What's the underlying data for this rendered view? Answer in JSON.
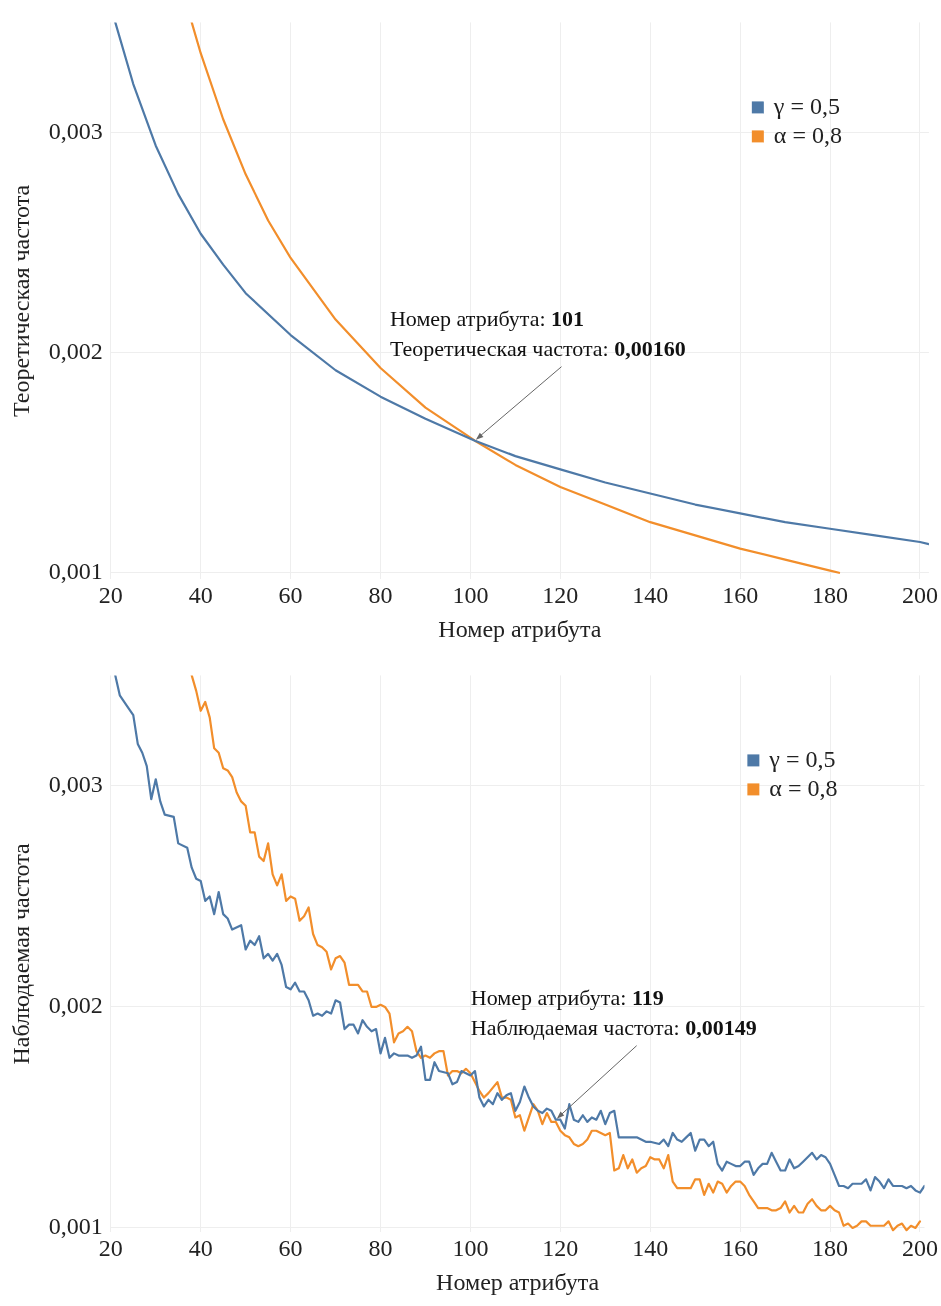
{
  "chart_data": [
    {
      "type": "line",
      "xlabel": "Номер атрибута",
      "ylabel": "Теоретическая частота",
      "xlim": [
        20,
        202
      ],
      "ylim": [
        0.00097,
        0.0035
      ],
      "xticks": [
        20,
        40,
        60,
        80,
        100,
        120,
        140,
        160,
        180,
        200
      ],
      "yticks": [
        {
          "value": 0.001,
          "label": "0,001"
        },
        {
          "value": 0.002,
          "label": "0,002"
        },
        {
          "value": 0.003,
          "label": "0,003"
        }
      ],
      "grid": true,
      "legend": "top right",
      "series": [
        {
          "name": "γ = 0,5",
          "color": "#4e79a7",
          "x": [
            21,
            25,
            30,
            35,
            40,
            45,
            50,
            60,
            70,
            80,
            90,
            101,
            110,
            120,
            130,
            140,
            150,
            160,
            170,
            180,
            190,
            200,
            202
          ],
          "values": [
            0.0035,
            0.00322,
            0.00294,
            0.00272,
            0.00254,
            0.0024,
            0.00227,
            0.00208,
            0.00192,
            0.0018,
            0.0017,
            0.0016,
            0.00153,
            0.00147,
            0.00141,
            0.00136,
            0.00131,
            0.00127,
            0.00123,
            0.0012,
            0.00117,
            0.00114,
            0.00113
          ]
        },
        {
          "name": "α = 0,8",
          "color": "#f28e2b",
          "x": [
            38,
            40,
            45,
            50,
            55,
            60,
            70,
            80,
            90,
            101,
            110,
            120,
            130,
            140,
            150,
            160,
            170,
            180,
            182
          ],
          "values": [
            0.0035,
            0.00336,
            0.00306,
            0.00281,
            0.0026,
            0.00243,
            0.00215,
            0.00193,
            0.00175,
            0.0016,
            0.00149,
            0.00139,
            0.00131,
            0.00123,
            0.00117,
            0.00111,
            0.00106,
            0.00101,
            0.001
          ]
        }
      ],
      "annotations": [
        {
          "text": "Номер атрибута: 101\nТеоретическая частота: 0,00160",
          "x": 101,
          "y": 0.0016
        }
      ]
    },
    {
      "type": "line",
      "xlabel": "Номер атрибута",
      "ylabel": "Наблюдаемая частота",
      "xlim": [
        20,
        201
      ],
      "ylim": [
        0.00098,
        0.0035
      ],
      "xticks": [
        20,
        40,
        60,
        80,
        100,
        120,
        140,
        160,
        180,
        200
      ],
      "yticks": [
        {
          "value": 0.001,
          "label": "0,001"
        },
        {
          "value": 0.002,
          "label": "0,002"
        },
        {
          "value": 0.003,
          "label": "0,003"
        }
      ],
      "grid": true,
      "legend": "top right",
      "series": [
        {
          "name": "γ = 0,5",
          "color": "#4e79a7",
          "x": [
            21,
            22,
            24,
            25,
            26,
            27,
            28,
            29,
            30,
            31,
            32,
            34,
            35,
            37,
            38,
            39,
            40,
            41,
            42,
            43,
            44,
            45,
            46,
            47,
            49,
            50,
            51,
            52,
            53,
            54,
            55,
            56,
            57,
            58,
            59,
            60,
            61,
            62,
            63,
            64,
            65,
            66,
            67,
            68,
            69,
            70,
            71,
            72,
            73,
            74,
            75,
            76,
            77,
            78,
            79,
            80,
            81,
            82,
            83,
            84,
            86,
            87,
            88,
            89,
            90,
            91,
            92,
            93,
            95,
            96,
            97,
            98,
            99,
            100,
            101,
            102,
            103,
            104,
            105,
            106,
            107,
            108,
            109,
            110,
            111,
            112,
            113,
            114,
            115,
            116,
            117,
            118,
            119,
            120,
            121,
            122,
            123,
            124,
            125,
            126,
            127,
            128,
            129,
            130,
            131,
            132,
            133,
            134,
            135,
            136,
            137,
            139,
            140,
            142,
            143,
            144,
            145,
            146,
            147,
            148,
            149,
            150,
            151,
            152,
            153,
            154,
            155,
            156,
            157,
            158,
            159,
            160,
            161,
            162,
            163,
            164,
            165,
            166,
            167,
            168,
            169,
            170,
            171,
            172,
            173,
            174,
            175,
            176,
            177,
            178,
            179,
            180,
            181,
            182,
            183,
            184,
            185,
            186,
            187,
            188,
            189,
            190,
            191,
            192,
            193,
            194,
            195,
            196,
            197,
            198,
            199,
            200,
            201
          ],
          "values": [
            0.0035,
            0.00341,
            0.00335,
            0.00332,
            0.00319,
            0.00315,
            0.00309,
            0.00294,
            0.00303,
            0.00293,
            0.00287,
            0.00286,
            0.00274,
            0.00272,
            0.00263,
            0.00258,
            0.00257,
            0.00248,
            0.0025,
            0.00242,
            0.00252,
            0.00242,
            0.0024,
            0.00235,
            0.00237,
            0.00226,
            0.0023,
            0.00228,
            0.00232,
            0.00222,
            0.00224,
            0.00221,
            0.00224,
            0.00219,
            0.00209,
            0.00208,
            0.00211,
            0.00207,
            0.00207,
            0.00203,
            0.00196,
            0.00197,
            0.00196,
            0.00198,
            0.00197,
            0.00203,
            0.00202,
            0.0019,
            0.00192,
            0.00192,
            0.00188,
            0.00194,
            0.00191,
            0.00189,
            0.0019,
            0.00179,
            0.00186,
            0.00177,
            0.00179,
            0.00178,
            0.00178,
            0.00177,
            0.00178,
            0.00182,
            0.00167,
            0.00167,
            0.00175,
            0.00171,
            0.0017,
            0.00165,
            0.00166,
            0.00171,
            0.0017,
            0.00169,
            0.00171,
            0.00159,
            0.00155,
            0.00158,
            0.00156,
            0.00161,
            0.00158,
            0.0016,
            0.00161,
            0.00153,
            0.00157,
            0.00164,
            0.00159,
            0.00155,
            0.00153,
            0.00152,
            0.00154,
            0.00153,
            0.00149,
            0.00149,
            0.00145,
            0.00156,
            0.00149,
            0.00148,
            0.00151,
            0.00148,
            0.0015,
            0.00149,
            0.00153,
            0.00147,
            0.00152,
            0.00153,
            0.00141,
            0.00141,
            0.00141,
            0.00141,
            0.00141,
            0.00139,
            0.00139,
            0.00138,
            0.0014,
            0.00137,
            0.00143,
            0.0014,
            0.00139,
            0.00141,
            0.00143,
            0.00135,
            0.0014,
            0.0014,
            0.00137,
            0.00139,
            0.00129,
            0.00126,
            0.0013,
            0.00129,
            0.00128,
            0.00128,
            0.0013,
            0.0013,
            0.00124,
            0.00127,
            0.00129,
            0.00129,
            0.00134,
            0.0013,
            0.00126,
            0.00126,
            0.00131,
            0.00127,
            0.00128,
            0.0013,
            0.00132,
            0.00134,
            0.00131,
            0.00133,
            0.00132,
            0.00129,
            0.00124,
            0.00119,
            0.00119,
            0.00118,
            0.0012,
            0.0012,
            0.0012,
            0.00122,
            0.00117,
            0.00123,
            0.00121,
            0.00118,
            0.00122,
            0.00119,
            0.00119,
            0.00119,
            0.00118,
            0.00119,
            0.00117,
            0.00116,
            0.00119
          ]
        },
        {
          "name": "α = 0,8",
          "color": "#f28e2b",
          "x": [
            38,
            39,
            40,
            41,
            42,
            43,
            44,
            45,
            46,
            47,
            48,
            49,
            50,
            51,
            52,
            53,
            54,
            55,
            56,
            57,
            58,
            59,
            60,
            61,
            62,
            63,
            64,
            65,
            66,
            67,
            68,
            69,
            70,
            71,
            72,
            73,
            74,
            75,
            76,
            77,
            78,
            79,
            80,
            81,
            82,
            83,
            84,
            85,
            86,
            87,
            88,
            89,
            90,
            91,
            92,
            93,
            94,
            95,
            96,
            97,
            98,
            99,
            100,
            101,
            102,
            103,
            104,
            106,
            107,
            108,
            109,
            110,
            111,
            112,
            113,
            114,
            115,
            116,
            117,
            118,
            119,
            120,
            121,
            122,
            123,
            124,
            125,
            126,
            127,
            128,
            129,
            130,
            131,
            132,
            133,
            134,
            135,
            136,
            137,
            138,
            139,
            140,
            141,
            142,
            143,
            144,
            145,
            146,
            147,
            148,
            149,
            150,
            151,
            152,
            153,
            154,
            155,
            156,
            157,
            158,
            159,
            160,
            161,
            162,
            163,
            164,
            165,
            166,
            167,
            168,
            169,
            170,
            171,
            172,
            173,
            174,
            175,
            176,
            177,
            178,
            179,
            180,
            181,
            182,
            183,
            184,
            185,
            186,
            187,
            188,
            189,
            190,
            191,
            192,
            193,
            194,
            195,
            196,
            197,
            198,
            199,
            200
          ],
          "values": [
            0.0035,
            0.00343,
            0.00334,
            0.00338,
            0.00331,
            0.00317,
            0.00315,
            0.00308,
            0.00307,
            0.00304,
            0.00297,
            0.00293,
            0.00291,
            0.00279,
            0.00279,
            0.00268,
            0.00266,
            0.00274,
            0.0026,
            0.00255,
            0.0026,
            0.00248,
            0.0025,
            0.00249,
            0.00239,
            0.00241,
            0.00245,
            0.00233,
            0.00228,
            0.00227,
            0.00225,
            0.00217,
            0.00222,
            0.00223,
            0.0022,
            0.0021,
            0.0021,
            0.0021,
            0.00207,
            0.00207,
            0.002,
            0.002,
            0.00201,
            0.002,
            0.00197,
            0.00184,
            0.00188,
            0.00189,
            0.00191,
            0.00189,
            0.0018,
            0.00177,
            0.00178,
            0.00177,
            0.00179,
            0.0018,
            0.0018,
            0.00169,
            0.00171,
            0.00171,
            0.0017,
            0.00172,
            0.0017,
            0.00166,
            0.00162,
            0.00159,
            0.00161,
            0.00166,
            0.00159,
            0.00159,
            0.00158,
            0.0015,
            0.00151,
            0.00144,
            0.0015,
            0.00156,
            0.00153,
            0.00147,
            0.00152,
            0.00148,
            0.00148,
            0.00144,
            0.00142,
            0.00141,
            0.00138,
            0.00137,
            0.00138,
            0.0014,
            0.00144,
            0.00144,
            0.00143,
            0.00142,
            0.00143,
            0.00126,
            0.00127,
            0.00133,
            0.00127,
            0.00131,
            0.00125,
            0.00127,
            0.00128,
            0.00132,
            0.00131,
            0.00131,
            0.00127,
            0.00133,
            0.00121,
            0.00118,
            0.00118,
            0.00118,
            0.00118,
            0.00122,
            0.00122,
            0.00115,
            0.0012,
            0.00116,
            0.00121,
            0.0012,
            0.00116,
            0.00119,
            0.00121,
            0.00121,
            0.00119,
            0.00115,
            0.00112,
            0.00109,
            0.00109,
            0.00109,
            0.00108,
            0.00108,
            0.00109,
            0.00112,
            0.00107,
            0.0011,
            0.00107,
            0.00107,
            0.00111,
            0.00113,
            0.0011,
            0.00108,
            0.00108,
            0.0011,
            0.00108,
            0.00107,
            0.00101,
            0.00102,
            0.001,
            0.00101,
            0.00103,
            0.00103,
            0.00101,
            0.00101,
            0.00101,
            0.00101,
            0.00103,
            0.00099,
            0.00101,
            0.00102,
            0.00099,
            0.00101,
            0.001,
            0.00103
          ]
        }
      ],
      "annotations": [
        {
          "text": "Номер атрибута: 119\nНаблюдаемая частота: 0,00149",
          "x": 119,
          "y": 0.00149
        }
      ]
    }
  ]
}
